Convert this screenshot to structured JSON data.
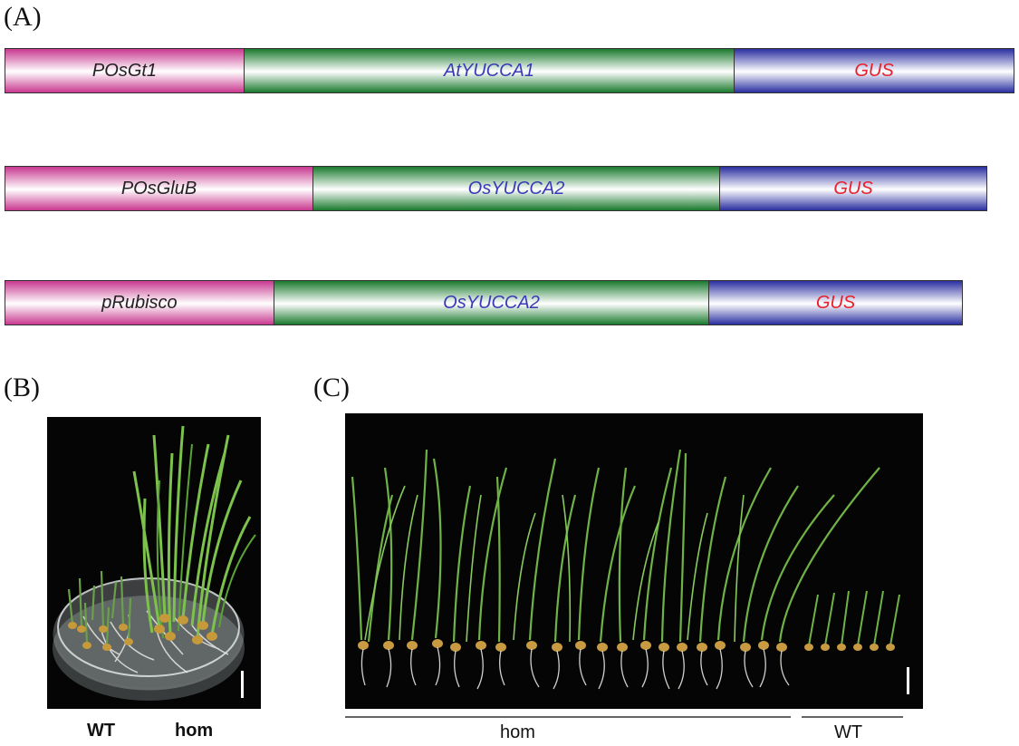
{
  "panels": {
    "a": "(A)",
    "b": "(B)",
    "c": "(C)"
  },
  "constructs": [
    {
      "promoter": "POsGt1",
      "gene": "AtYUCCA1",
      "reporter": "GUS"
    },
    {
      "promoter": "POsGluB",
      "gene": "OsYUCCA2",
      "reporter": "GUS"
    },
    {
      "promoter": "pRubisco",
      "gene": "OsYUCCA2",
      "reporter": "GUS"
    }
  ],
  "colors": {
    "promoter": "#c8388f",
    "gene": "#1a7a2e",
    "gus": "#2a2fa0",
    "gene_text": "#3a3ab8",
    "reporter_text": "#e8202a"
  },
  "photo_b": {
    "labels": {
      "wt": "WT",
      "hom": "hom"
    }
  },
  "photo_c": {
    "labels": {
      "hom": "hom",
      "wt": "WT"
    }
  }
}
